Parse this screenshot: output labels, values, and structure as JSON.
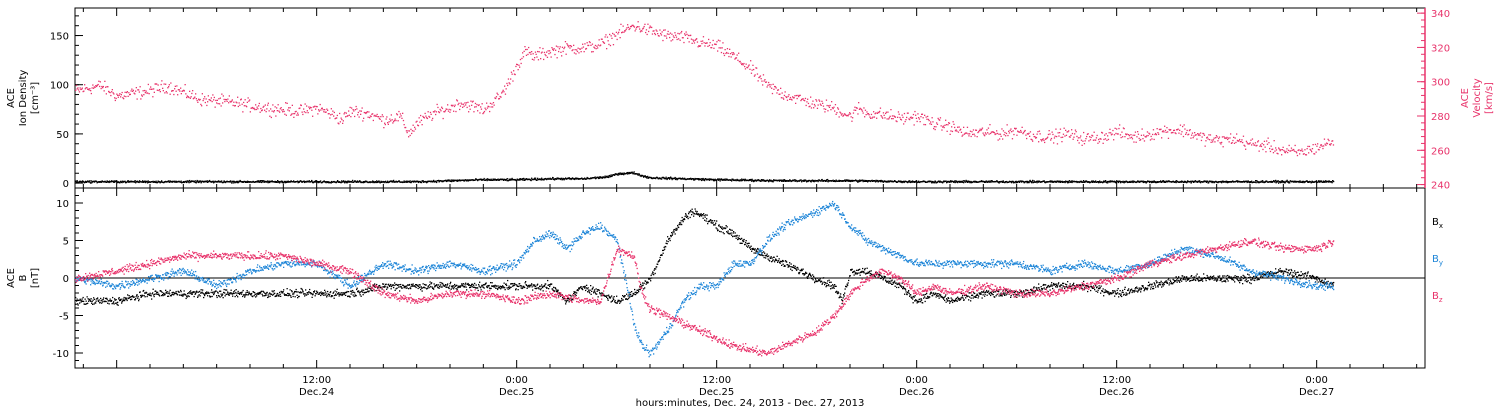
{
  "chart_data": [
    {
      "type": "scatter",
      "panel": "top",
      "xlabel": "hours:minutes, Dec. 24, 2013 - Dec. 27, 2013",
      "x_ticks": [
        {
          "t": 12,
          "time": "12:00",
          "date": "Dec.24"
        },
        {
          "t": 24,
          "time": "0:00",
          "date": "Dec.25"
        },
        {
          "t": 36,
          "time": "12:00",
          "date": "Dec.25"
        },
        {
          "t": 48,
          "time": "0:00",
          "date": "Dec.26"
        },
        {
          "t": 60,
          "time": "12:00",
          "date": "Dec.26"
        },
        {
          "t": 72,
          "time": "0:00",
          "date": "Dec.27"
        }
      ],
      "xlim_hours": [
        -2.5,
        78.5
      ],
      "y_left": {
        "label_lines": [
          "ACE",
          "Ion Density",
          "[cm⁻³]"
        ],
        "ylim": [
          -5,
          178
        ],
        "ticks": [
          "0",
          "50",
          "100",
          "150"
        ]
      },
      "y_right": {
        "label_lines": [
          "ACE",
          "Velocity",
          "[km/s]"
        ],
        "ylim": [
          238,
          343
        ],
        "ticks": [
          "240",
          "260",
          "280",
          "300",
          "320",
          "340"
        ],
        "color": "#e8336b"
      },
      "series": [
        {
          "axis": "left",
          "color": "#000000",
          "points": [
            [
              -2.5,
              2
            ],
            [
              0,
              2
            ],
            [
              6,
              2
            ],
            [
              12,
              2
            ],
            [
              18,
              2
            ],
            [
              20,
              3
            ],
            [
              22,
              4
            ],
            [
              24,
              4
            ],
            [
              26,
              5
            ],
            [
              28,
              5
            ],
            [
              29.5,
              7
            ],
            [
              30,
              10
            ],
            [
              31,
              11
            ],
            [
              31.5,
              8
            ],
            [
              32,
              6
            ],
            [
              34,
              5
            ],
            [
              36,
              4
            ],
            [
              40,
              3
            ],
            [
              44,
              3
            ],
            [
              48,
              2
            ],
            [
              52,
              2
            ],
            [
              56,
              2
            ],
            [
              60,
              2
            ],
            [
              64,
              2
            ],
            [
              68,
              2
            ],
            [
              72,
              2
            ],
            [
              73,
              2
            ]
          ]
        },
        {
          "axis": "right",
          "color": "#e8336b",
          "points": [
            [
              -2.5,
              295
            ],
            [
              -1,
              298
            ],
            [
              0,
              292
            ],
            [
              2,
              295
            ],
            [
              3,
              298
            ],
            [
              5,
              290
            ],
            [
              7,
              288
            ],
            [
              9,
              285
            ],
            [
              11,
              283
            ],
            [
              12,
              285
            ],
            [
              13,
              281
            ],
            [
              13.5,
              278
            ],
            [
              14,
              283
            ],
            [
              15,
              282
            ],
            [
              16,
              278
            ],
            [
              17,
              280
            ],
            [
              17.5,
              270
            ],
            [
              18,
              276
            ],
            [
              19,
              282
            ],
            [
              20,
              285
            ],
            [
              20.5,
              288
            ],
            [
              21,
              287
            ],
            [
              22,
              284
            ],
            [
              23,
              292
            ],
            [
              23.5,
              300
            ],
            [
              24,
              310
            ],
            [
              24.5,
              318
            ],
            [
              25,
              315
            ],
            [
              26,
              318
            ],
            [
              27,
              320
            ],
            [
              28,
              320
            ],
            [
              29,
              322
            ],
            [
              30,
              328
            ],
            [
              31,
              333
            ],
            [
              32,
              330
            ],
            [
              33,
              327
            ],
            [
              34,
              326
            ],
            [
              35,
              323
            ],
            [
              36,
              321
            ],
            [
              37,
              315
            ],
            [
              38,
              308
            ],
            [
              39,
              298
            ],
            [
              40,
              293
            ],
            [
              41,
              290
            ],
            [
              42,
              287
            ],
            [
              43,
              285
            ],
            [
              44,
              280
            ],
            [
              44.5,
              285
            ],
            [
              45,
              282
            ],
            [
              46,
              281
            ],
            [
              47,
              279
            ],
            [
              48,
              280
            ],
            [
              49,
              276
            ],
            [
              50,
              274
            ],
            [
              51,
              270
            ],
            [
              52,
              271
            ],
            [
              53,
              270
            ],
            [
              54,
              272
            ],
            [
              55,
              269
            ],
            [
              56,
              268
            ],
            [
              57,
              270
            ],
            [
              58,
              267
            ],
            [
              59,
              268
            ],
            [
              60,
              271
            ],
            [
              61,
              268
            ],
            [
              62,
              270
            ],
            [
              63,
              272
            ],
            [
              64,
              272
            ],
            [
              65,
              268
            ],
            [
              66,
              266
            ],
            [
              67,
              267
            ],
            [
              68,
              264
            ],
            [
              69,
              263
            ],
            [
              70,
              260
            ],
            [
              71,
              259
            ],
            [
              72,
              262
            ],
            [
              73,
              266
            ]
          ]
        }
      ]
    },
    {
      "type": "scatter",
      "panel": "bottom",
      "xlabel": "hours:minutes, Dec. 24, 2013 - Dec. 27, 2013",
      "y_left": {
        "label_lines": [
          "ACE",
          "B",
          "[nT]"
        ],
        "ylim": [
          -12,
          12
        ],
        "ticks": [
          "-10",
          "-5",
          "0",
          "5",
          "10"
        ]
      },
      "zero_line": true,
      "series": [
        {
          "name": "Bx",
          "color": "#000000",
          "points": [
            [
              -2.5,
              -3
            ],
            [
              0,
              -3
            ],
            [
              2,
              -2
            ],
            [
              4,
              -2
            ],
            [
              6,
              -2
            ],
            [
              8,
              -2
            ],
            [
              10,
              -2
            ],
            [
              12,
              -2
            ],
            [
              14,
              -2
            ],
            [
              16,
              -1
            ],
            [
              18,
              -1
            ],
            [
              20,
              -1
            ],
            [
              22,
              -1
            ],
            [
              24,
              -1
            ],
            [
              26,
              -1
            ],
            [
              27,
              -3
            ],
            [
              28,
              -1
            ],
            [
              29,
              -2
            ],
            [
              30,
              -3
            ],
            [
              31,
              -2
            ],
            [
              32,
              0
            ],
            [
              33,
              5
            ],
            [
              34,
              8
            ],
            [
              34.5,
              9
            ],
            [
              35,
              8.5
            ],
            [
              36,
              7
            ],
            [
              37,
              6
            ],
            [
              38,
              4
            ],
            [
              39,
              3
            ],
            [
              40,
              2
            ],
            [
              41,
              1
            ],
            [
              42,
              0
            ],
            [
              43,
              -1
            ],
            [
              43.5,
              -3
            ],
            [
              44,
              1
            ],
            [
              45,
              1
            ],
            [
              46,
              0
            ],
            [
              47,
              -1
            ],
            [
              48,
              -3
            ],
            [
              49,
              -2
            ],
            [
              50,
              -3
            ],
            [
              52,
              -2
            ],
            [
              54,
              -2
            ],
            [
              56,
              -1
            ],
            [
              58,
              -1
            ],
            [
              60,
              -2
            ],
            [
              62,
              -1
            ],
            [
              64,
              0
            ],
            [
              66,
              0
            ],
            [
              68,
              0
            ],
            [
              70,
              1
            ],
            [
              72,
              0
            ],
            [
              73,
              -1
            ]
          ]
        },
        {
          "name": "By",
          "color": "#1f86d8",
          "points": [
            [
              -2.5,
              0
            ],
            [
              0,
              -1
            ],
            [
              2,
              0
            ],
            [
              4,
              1
            ],
            [
              6,
              -1
            ],
            [
              8,
              1
            ],
            [
              10,
              2
            ],
            [
              12,
              2
            ],
            [
              14,
              -1
            ],
            [
              16,
              2
            ],
            [
              18,
              1
            ],
            [
              20,
              2
            ],
            [
              22,
              1
            ],
            [
              24,
              2
            ],
            [
              25,
              5
            ],
            [
              26,
              6
            ],
            [
              27,
              4
            ],
            [
              28,
              6
            ],
            [
              29,
              7
            ],
            [
              30,
              5
            ],
            [
              30.5,
              0
            ],
            [
              31,
              -6
            ],
            [
              31.5,
              -9
            ],
            [
              32,
              -10
            ],
            [
              33,
              -7
            ],
            [
              34,
              -3
            ],
            [
              35,
              -1
            ],
            [
              36,
              -1
            ],
            [
              37,
              2
            ],
            [
              38,
              2
            ],
            [
              39,
              5
            ],
            [
              40,
              7
            ],
            [
              41,
              8
            ],
            [
              42,
              9
            ],
            [
              43,
              10
            ],
            [
              44,
              7
            ],
            [
              45,
              5
            ],
            [
              46,
              4
            ],
            [
              47,
              3
            ],
            [
              48,
              2
            ],
            [
              50,
              2
            ],
            [
              52,
              2
            ],
            [
              54,
              2
            ],
            [
              56,
              1
            ],
            [
              58,
              2
            ],
            [
              60,
              1
            ],
            [
              62,
              2
            ],
            [
              64,
              4
            ],
            [
              66,
              3
            ],
            [
              68,
              1
            ],
            [
              70,
              0
            ],
            [
              72,
              -1
            ],
            [
              73,
              -1
            ]
          ]
        },
        {
          "name": "Bz",
          "color": "#e8336b",
          "points": [
            [
              -2.5,
              0
            ],
            [
              0,
              1
            ],
            [
              2,
              2
            ],
            [
              4,
              3
            ],
            [
              6,
              3
            ],
            [
              8,
              3
            ],
            [
              10,
              3
            ],
            [
              12,
              2
            ],
            [
              14,
              1
            ],
            [
              16,
              -2
            ],
            [
              18,
              -3
            ],
            [
              20,
              -2
            ],
            [
              22,
              -2
            ],
            [
              24,
              -3
            ],
            [
              26,
              -2
            ],
            [
              28,
              -3
            ],
            [
              29,
              -3
            ],
            [
              30,
              4
            ],
            [
              31,
              3
            ],
            [
              31.5,
              -2
            ],
            [
              32,
              -4
            ],
            [
              33,
              -5
            ],
            [
              34,
              -6
            ],
            [
              35,
              -7
            ],
            [
              36,
              -8
            ],
            [
              37,
              -9
            ],
            [
              38,
              -9.5
            ],
            [
              39,
              -10
            ],
            [
              40,
              -9
            ],
            [
              41,
              -8
            ],
            [
              42,
              -7
            ],
            [
              43,
              -5
            ],
            [
              44,
              -2
            ],
            [
              45,
              0
            ],
            [
              46,
              1
            ],
            [
              47,
              0
            ],
            [
              48,
              -2
            ],
            [
              49,
              -1
            ],
            [
              50,
              -2
            ],
            [
              52,
              -1
            ],
            [
              54,
              -2
            ],
            [
              56,
              -2
            ],
            [
              58,
              -1
            ],
            [
              60,
              0
            ],
            [
              62,
              2
            ],
            [
              64,
              3
            ],
            [
              66,
              4
            ],
            [
              68,
              5
            ],
            [
              70,
              4
            ],
            [
              72,
              4
            ],
            [
              73,
              5
            ]
          ]
        }
      ],
      "legend": [
        {
          "text": "B",
          "sub": "x",
          "color": "#000000"
        },
        {
          "text": "B",
          "sub": "y",
          "color": "#1f86d8"
        },
        {
          "text": "B",
          "sub": "z",
          "color": "#e8336b"
        }
      ]
    }
  ]
}
